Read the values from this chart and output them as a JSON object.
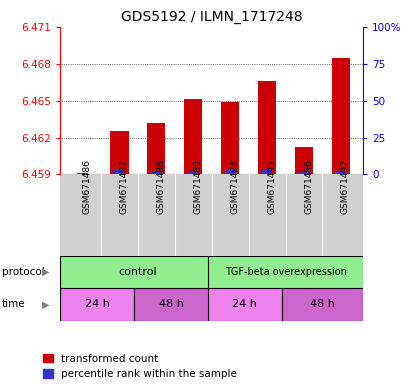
{
  "title": "GDS5192 / ILMN_1717248",
  "samples": [
    "GSM671486",
    "GSM671487",
    "GSM671488",
    "GSM671489",
    "GSM671494",
    "GSM671495",
    "GSM671496",
    "GSM671497"
  ],
  "red_values": [
    6.459,
    6.4625,
    6.4632,
    6.4651,
    6.4649,
    6.4666,
    6.4612,
    6.4685
  ],
  "blue_percentiles": [
    1,
    3,
    2,
    2,
    3,
    3,
    2,
    2
  ],
  "ymin": 6.459,
  "ymax": 6.471,
  "yticks": [
    6.459,
    6.462,
    6.465,
    6.468,
    6.471
  ],
  "y2ticks": [
    0,
    25,
    50,
    75,
    100
  ],
  "y2labels": [
    "0",
    "25",
    "50",
    "75",
    "100%"
  ],
  "bar_color_red": "#cc0000",
  "bar_color_blue": "#3333cc",
  "bar_width": 0.5,
  "title_fontsize": 10,
  "tick_fontsize": 7.5,
  "sample_fontsize": 6.5,
  "label_fontsize": 8,
  "legend_fontsize": 7.5,
  "grid_yticks": [
    6.462,
    6.465,
    6.468
  ],
  "control_color": "#90ee90",
  "tgfbeta_color": "#90ee90",
  "time_color_light": "#ee82ee",
  "time_color_dark": "#cc66cc",
  "time_labels": [
    "24 h",
    "48 h",
    "24 h",
    "48 h"
  ]
}
